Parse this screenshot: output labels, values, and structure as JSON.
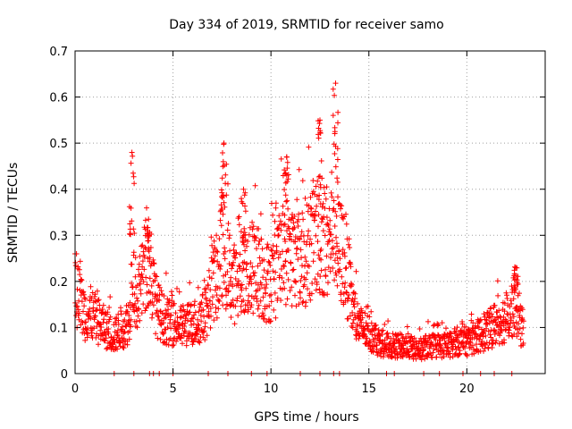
{
  "chart_data": {
    "type": "scatter",
    "title": "Day 334 of 2019, SRMTID for receiver samo",
    "xlabel": "GPS time / hours",
    "ylabel": "SRMTID / TECUs",
    "xlim": [
      0,
      24
    ],
    "ylim": [
      0,
      0.7
    ],
    "x_ticks": [
      0,
      5,
      10,
      15,
      20
    ],
    "x_tick_labels": [
      "0",
      "5",
      "10",
      "15",
      "20"
    ],
    "y_ticks": [
      0,
      0.1,
      0.2,
      0.3,
      0.4,
      0.5,
      0.6,
      0.7
    ],
    "y_tick_labels": [
      "0",
      "0.1",
      "0.2",
      "0.3",
      "0.4",
      "0.5",
      "0.6",
      "0.7"
    ],
    "grid": true,
    "marker": "plus",
    "series": [
      {
        "name": "SRMTID",
        "color": "#ff0000",
        "note": "dense time series of approx. 1800 points sampled every 0.0125 h; values below are a representative envelope",
        "x": [
          0.0,
          0.1,
          0.3,
          0.5,
          0.8,
          1.0,
          1.3,
          1.5,
          1.8,
          2.0,
          2.3,
          2.5,
          2.8,
          2.9,
          3.0,
          3.2,
          3.5,
          3.7,
          3.9,
          4.2,
          4.5,
          4.8,
          5.0,
          5.5,
          6.0,
          6.5,
          6.8,
          7.0,
          7.3,
          7.5,
          7.7,
          8.0,
          8.3,
          8.6,
          9.0,
          9.3,
          9.6,
          10.0,
          10.3,
          10.5,
          10.8,
          11.0,
          11.5,
          12.0,
          12.3,
          12.6,
          13.0,
          13.2,
          13.4,
          13.8,
          14.0,
          14.3,
          14.6,
          15.0,
          15.5,
          16.0,
          16.5,
          17.0,
          17.5,
          18.0,
          18.5,
          19.0,
          19.5,
          20.0,
          20.5,
          21.0,
          21.5,
          22.0,
          22.3,
          22.5,
          22.8
        ],
        "y": [
          0.2,
          0.18,
          0.15,
          0.13,
          0.13,
          0.12,
          0.11,
          0.1,
          0.09,
          0.08,
          0.1,
          0.1,
          0.12,
          0.28,
          0.2,
          0.15,
          0.22,
          0.25,
          0.2,
          0.14,
          0.12,
          0.11,
          0.11,
          0.1,
          0.11,
          0.12,
          0.15,
          0.2,
          0.21,
          0.27,
          0.25,
          0.2,
          0.19,
          0.22,
          0.22,
          0.23,
          0.2,
          0.2,
          0.22,
          0.25,
          0.27,
          0.26,
          0.25,
          0.28,
          0.3,
          0.3,
          0.28,
          0.36,
          0.27,
          0.25,
          0.18,
          0.12,
          0.1,
          0.09,
          0.07,
          0.06,
          0.06,
          0.06,
          0.05,
          0.06,
          0.06,
          0.06,
          0.07,
          0.07,
          0.08,
          0.09,
          0.11,
          0.12,
          0.14,
          0.15,
          0.1
        ],
        "peaks": [
          {
            "x": 2.9,
            "y": 0.48
          },
          {
            "x": 3.7,
            "y": 0.31
          },
          {
            "x": 7.6,
            "y": 0.5
          },
          {
            "x": 8.6,
            "y": 0.4
          },
          {
            "x": 10.8,
            "y": 0.47
          },
          {
            "x": 12.5,
            "y": 0.55
          },
          {
            "x": 13.3,
            "y": 0.63
          },
          {
            "x": 22.5,
            "y": 0.23
          }
        ],
        "zero_values_x": [
          2.0,
          3.0,
          3.8,
          4.0,
          4.3,
          5.0,
          6.8,
          7.8,
          9.0,
          9.8,
          11.5,
          12.5,
          13.2,
          13.5,
          15.9,
          16.3,
          17.8,
          18.6,
          19.8,
          20.7,
          21.4,
          22.3
        ]
      }
    ]
  }
}
